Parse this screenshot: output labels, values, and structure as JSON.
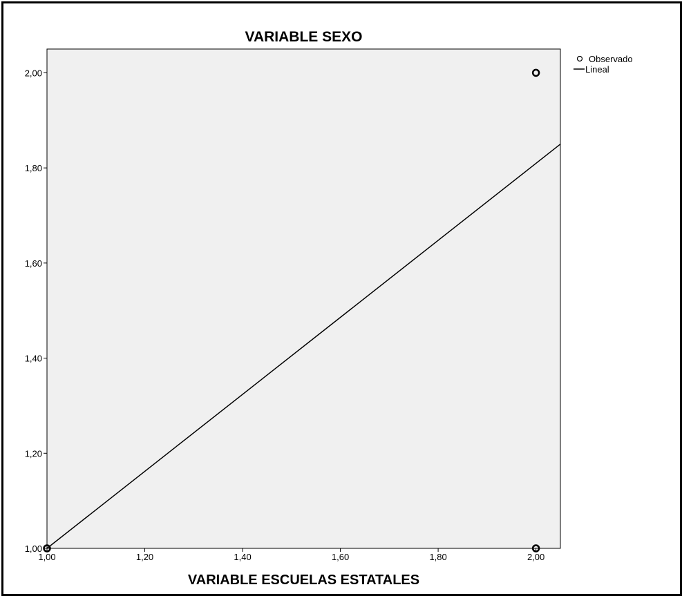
{
  "chart_data": {
    "type": "scatter",
    "title": "VARIABLE SEXO",
    "xlabel": "VARIABLE ESCUELAS ESTATALES",
    "ylabel": "",
    "xlim": [
      1.0,
      2.05
    ],
    "ylim": [
      1.0,
      2.05
    ],
    "x_ticks": [
      1.0,
      1.2,
      1.4,
      1.6,
      1.8,
      2.0
    ],
    "x_tick_labels": [
      "1,00",
      "1,20",
      "1,40",
      "1,60",
      "1,80",
      "2,00"
    ],
    "y_ticks": [
      1.0,
      1.2,
      1.4,
      1.6,
      1.8,
      2.0
    ],
    "y_tick_labels": [
      "1,00",
      "1,20",
      "1,40",
      "1,60",
      "1,80",
      "2,00"
    ],
    "grid": false,
    "legend_position": "top-right, outside plot",
    "plot_background": "#f0f0f0",
    "series": [
      {
        "name": "Observado",
        "kind": "points",
        "marker": "open-circle",
        "x": [
          1.0,
          2.0,
          2.0
        ],
        "y": [
          1.0,
          2.0,
          1.0
        ]
      },
      {
        "name": "Lineal",
        "kind": "line",
        "x": [
          1.0,
          2.05
        ],
        "y": [
          1.0,
          1.85
        ]
      }
    ]
  }
}
